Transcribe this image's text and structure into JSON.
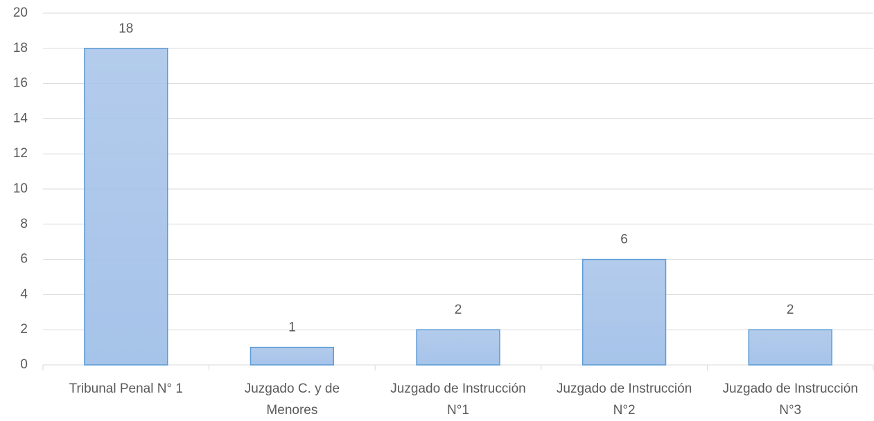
{
  "chart_data": {
    "type": "bar",
    "categories": [
      "Tribunal Penal N° 1",
      "Juzgado C. y de Menores",
      "Juzgado de Instrucción N°1",
      "Juzgado de Instrucción N°2",
      "Juzgado de Instrucción N°3"
    ],
    "values": [
      18,
      1,
      2,
      6,
      2
    ],
    "color": "#a6c3e9",
    "edge_color": "#5b9bd5",
    "ylim": [
      0,
      20
    ],
    "yticks": [
      0,
      2,
      4,
      6,
      8,
      10,
      12,
      14,
      16,
      18,
      20
    ],
    "grid": true
  }
}
